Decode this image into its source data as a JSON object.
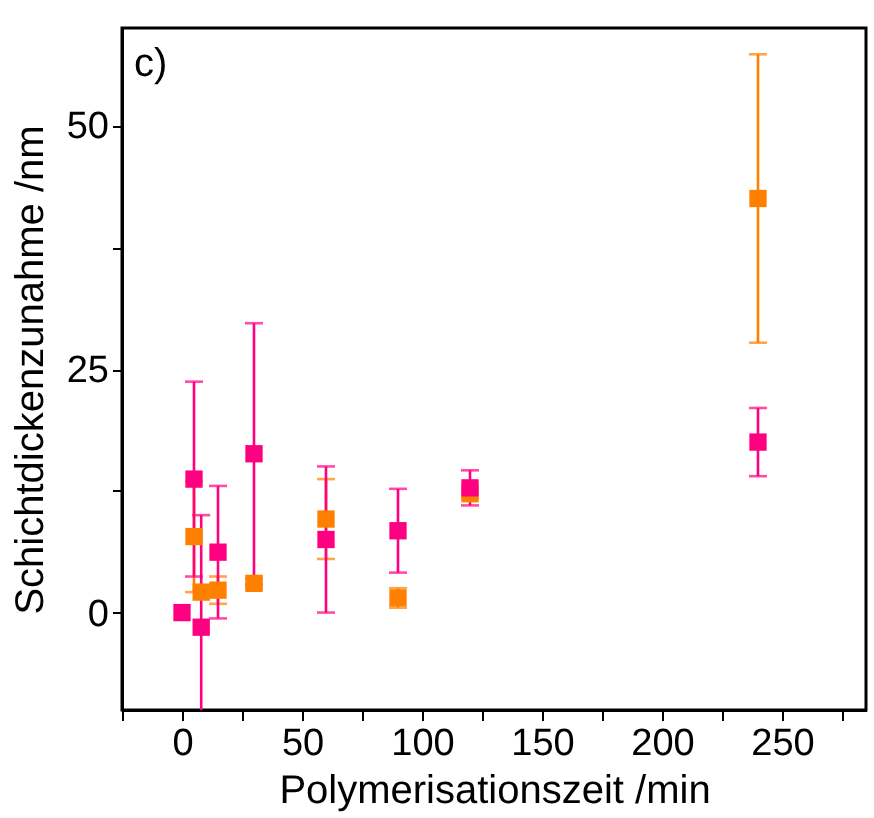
{
  "chart_data": {
    "type": "scatter",
    "xlabel": "Polymerisationszeit /min",
    "ylabel": "Schichtdickenzunahme /nm",
    "annotations": [
      "c)"
    ],
    "xlim": [
      -25,
      285
    ],
    "ylim": [
      -10,
      60
    ],
    "xticks": [
      {
        "value": -25,
        "label": null
      },
      0,
      {
        "value": 25,
        "label": null
      },
      50,
      {
        "value": 75,
        "label": null
      },
      100,
      {
        "value": 125,
        "label": null
      },
      150,
      {
        "value": 175,
        "label": null
      },
      200,
      {
        "value": 225,
        "label": null
      },
      250,
      {
        "value": 275,
        "label": null
      }
    ],
    "yticks": [
      0,
      {
        "value": 12.5,
        "label": null
      },
      25,
      {
        "value": 37.5,
        "label": null
      },
      50
    ],
    "marker": "square",
    "grid": false,
    "series": [
      {
        "color": "#ff8000",
        "x": [
          5,
          8,
          15,
          30,
          60,
          90,
          120,
          240
        ],
        "values": [
          7.8,
          2.1,
          2.3,
          3.0,
          9.6,
          1.5,
          12.2,
          42.5
        ],
        "errors": [
          5.7,
          null,
          1.4,
          0.5,
          4.1,
          1.0,
          0.5,
          14.8
        ]
      },
      {
        "color": "#ff0080",
        "x": [
          0,
          5,
          8,
          15,
          30,
          60,
          90,
          120,
          240
        ],
        "values": [
          0,
          13.7,
          -1.5,
          6.2,
          16.3,
          7.5,
          8.4,
          12.8,
          17.5
        ],
        "errors": [
          null,
          10.0,
          11.5,
          6.8,
          13.4,
          7.5,
          4.3,
          1.8,
          3.5
        ]
      }
    ]
  }
}
